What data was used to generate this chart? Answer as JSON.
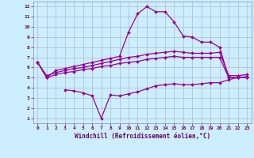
{
  "xlabel": "Windchill (Refroidissement éolien,°C)",
  "bg_color": "#cceeff",
  "grid_color": "#aabbcc",
  "line_color": "#990099",
  "xlim": [
    -0.5,
    23.5
  ],
  "ylim": [
    0.5,
    12.5
  ],
  "xticks": [
    0,
    1,
    2,
    3,
    4,
    5,
    6,
    7,
    8,
    9,
    10,
    11,
    12,
    13,
    14,
    15,
    16,
    17,
    18,
    19,
    20,
    21,
    22,
    23
  ],
  "yticks": [
    1,
    2,
    3,
    4,
    5,
    6,
    7,
    8,
    9,
    10,
    11,
    12
  ],
  "curve1_x": [
    0,
    1,
    2,
    3,
    4,
    5,
    6,
    7,
    8,
    9,
    10,
    11,
    12,
    13,
    14,
    15,
    16,
    17,
    18,
    19,
    20,
    21,
    22,
    23
  ],
  "curve1_y": [
    6.5,
    5.0,
    5.7,
    5.9,
    6.1,
    6.3,
    6.5,
    6.7,
    6.9,
    7.1,
    9.5,
    11.3,
    12.0,
    11.5,
    11.5,
    10.5,
    9.1,
    9.0,
    8.5,
    8.5,
    8.0,
    5.0,
    5.0,
    5.0
  ],
  "curve2_x": [
    0,
    1,
    2,
    3,
    4,
    5,
    6,
    7,
    8,
    9,
    10,
    11,
    12,
    13,
    14,
    15,
    16,
    17,
    18,
    19,
    20,
    21,
    22,
    23
  ],
  "curve2_y": [
    6.5,
    5.2,
    5.5,
    5.7,
    5.9,
    6.0,
    6.2,
    6.4,
    6.6,
    6.8,
    7.0,
    7.1,
    7.3,
    7.4,
    7.5,
    7.6,
    7.5,
    7.4,
    7.4,
    7.4,
    7.5,
    5.2,
    5.2,
    5.3
  ],
  "curve3_x": [
    0,
    1,
    2,
    3,
    4,
    5,
    6,
    7,
    8,
    9,
    10,
    11,
    12,
    13,
    14,
    15,
    16,
    17,
    18,
    19,
    20,
    21,
    22,
    23
  ],
  "curve3_y": [
    6.5,
    5.0,
    5.3,
    5.5,
    5.6,
    5.8,
    5.9,
    6.1,
    6.2,
    6.4,
    6.5,
    6.6,
    6.8,
    6.9,
    7.0,
    7.1,
    7.0,
    7.0,
    7.0,
    7.0,
    7.0,
    5.0,
    5.0,
    5.1
  ],
  "curve4_x": [
    3,
    4,
    5,
    6,
    7,
    8,
    9,
    10,
    11,
    12,
    13,
    14,
    15,
    16,
    17,
    18,
    19,
    20,
    21,
    22,
    23
  ],
  "curve4_y": [
    3.8,
    3.7,
    3.5,
    3.2,
    1.0,
    3.3,
    3.2,
    3.4,
    3.6,
    3.9,
    4.2,
    4.3,
    4.4,
    4.3,
    4.3,
    4.4,
    4.5,
    4.5,
    4.8,
    5.0,
    5.0
  ]
}
